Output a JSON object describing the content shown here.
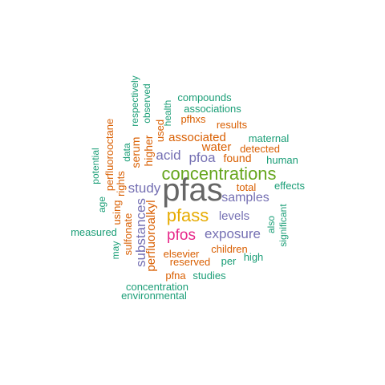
{
  "palette": {
    "green": "#1b9e77",
    "orange": "#d95f02",
    "purple": "#7570b3",
    "magenta": "#e7298a",
    "lime": "#66a61e",
    "gold": "#e6ab02",
    "gray": "#666666"
  },
  "words": [
    {
      "text": "pfas",
      "color": "gray"
    },
    {
      "text": "concentrations",
      "color": "lime"
    },
    {
      "text": "pfass",
      "color": "gold"
    },
    {
      "text": "pfos",
      "color": "magenta"
    },
    {
      "text": "exposure",
      "color": "purple"
    },
    {
      "text": "pfoa",
      "color": "purple"
    },
    {
      "text": "acid",
      "color": "purple"
    },
    {
      "text": "study",
      "color": "purple"
    },
    {
      "text": "samples",
      "color": "purple"
    },
    {
      "text": "levels",
      "color": "purple"
    },
    {
      "text": "substances",
      "color": "purple"
    },
    {
      "text": "perfluoroalkyl",
      "color": "orange"
    },
    {
      "text": "associated",
      "color": "orange"
    },
    {
      "text": "water",
      "color": "orange"
    },
    {
      "text": "found",
      "color": "orange"
    },
    {
      "text": "serum",
      "color": "orange"
    },
    {
      "text": "higher",
      "color": "orange"
    },
    {
      "text": "perfluorooctane",
      "color": "orange"
    },
    {
      "text": "detected",
      "color": "orange"
    },
    {
      "text": "results",
      "color": "orange"
    },
    {
      "text": "pfhxs",
      "color": "orange"
    },
    {
      "text": "used",
      "color": "orange"
    },
    {
      "text": "total",
      "color": "orange"
    },
    {
      "text": "children",
      "color": "orange"
    },
    {
      "text": "elsevier",
      "color": "orange"
    },
    {
      "text": "reserved",
      "color": "orange"
    },
    {
      "text": "pfna",
      "color": "orange"
    },
    {
      "text": "using",
      "color": "orange"
    },
    {
      "text": "rights",
      "color": "orange"
    },
    {
      "text": "sulfonate",
      "color": "orange"
    },
    {
      "text": "compounds",
      "color": "green"
    },
    {
      "text": "associations",
      "color": "green"
    },
    {
      "text": "health",
      "color": "green"
    },
    {
      "text": "observed",
      "color": "green"
    },
    {
      "text": "respectively",
      "color": "green"
    },
    {
      "text": "data",
      "color": "green"
    },
    {
      "text": "maternal",
      "color": "green"
    },
    {
      "text": "human",
      "color": "green"
    },
    {
      "text": "effects",
      "color": "green"
    },
    {
      "text": "potential",
      "color": "green"
    },
    {
      "text": "age",
      "color": "green"
    },
    {
      "text": "measured",
      "color": "green"
    },
    {
      "text": "may",
      "color": "green"
    },
    {
      "text": "also",
      "color": "green"
    },
    {
      "text": "significant",
      "color": "green"
    },
    {
      "text": "per",
      "color": "green"
    },
    {
      "text": "high",
      "color": "green"
    },
    {
      "text": "studies",
      "color": "green"
    },
    {
      "text": "concentration",
      "color": "green"
    },
    {
      "text": "environmental",
      "color": "green"
    }
  ]
}
